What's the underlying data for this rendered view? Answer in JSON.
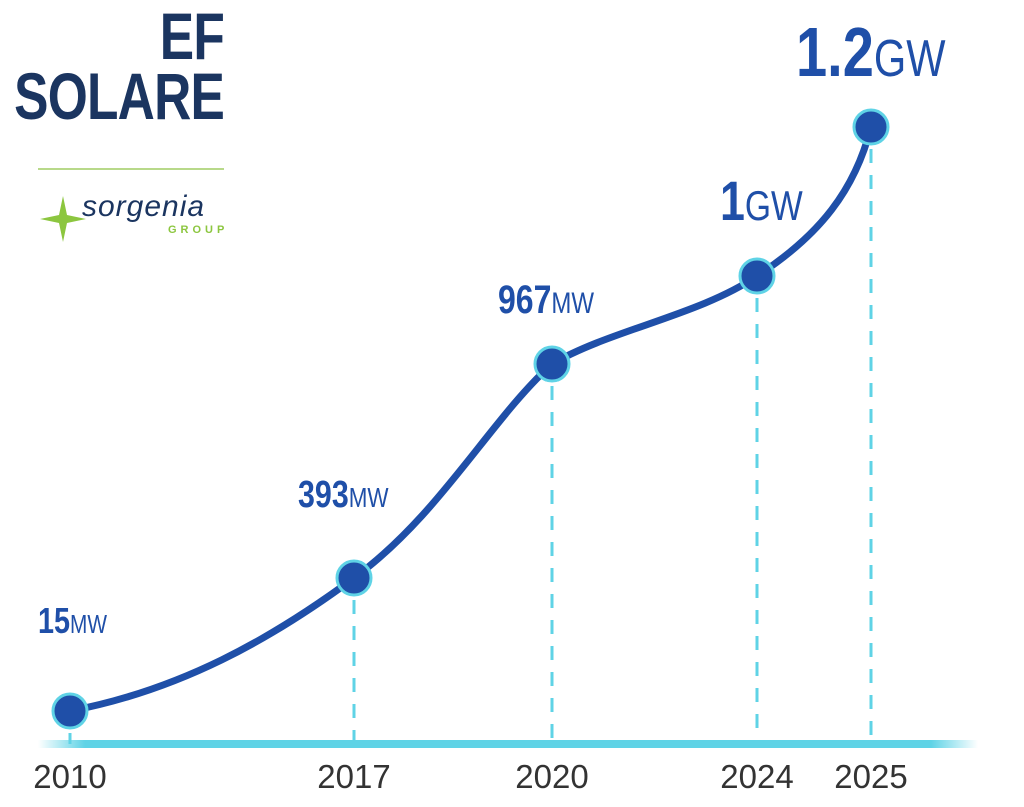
{
  "brand": {
    "title_line1": "EF",
    "title_line2": "SOLARE",
    "logo_text": "sorgenia",
    "logo_sub": "GROUP"
  },
  "colors": {
    "line": "#1f4fa8",
    "point": "#1f4fa8",
    "point_ring": "#5fd3e6",
    "axis": "#5fd3e6",
    "title": "#1b3560",
    "logo_green": "#8cc63f"
  },
  "chart_data": {
    "type": "line",
    "title": "EF SOLARE",
    "categories": [
      "2010",
      "2017",
      "2020",
      "2024",
      "2025"
    ],
    "values_mw": [
      15,
      393,
      967,
      1000,
      1200
    ],
    "data_labels": [
      {
        "num": "15",
        "unit": "MW"
      },
      {
        "num": "393",
        "unit": "MW"
      },
      {
        "num": "967",
        "unit": "MW"
      },
      {
        "num": "1",
        "unit": "GW"
      },
      {
        "num": "1.2",
        "unit": "GW"
      }
    ],
    "xlabel": "",
    "ylabel": "",
    "grid": false,
    "legend": "none"
  }
}
